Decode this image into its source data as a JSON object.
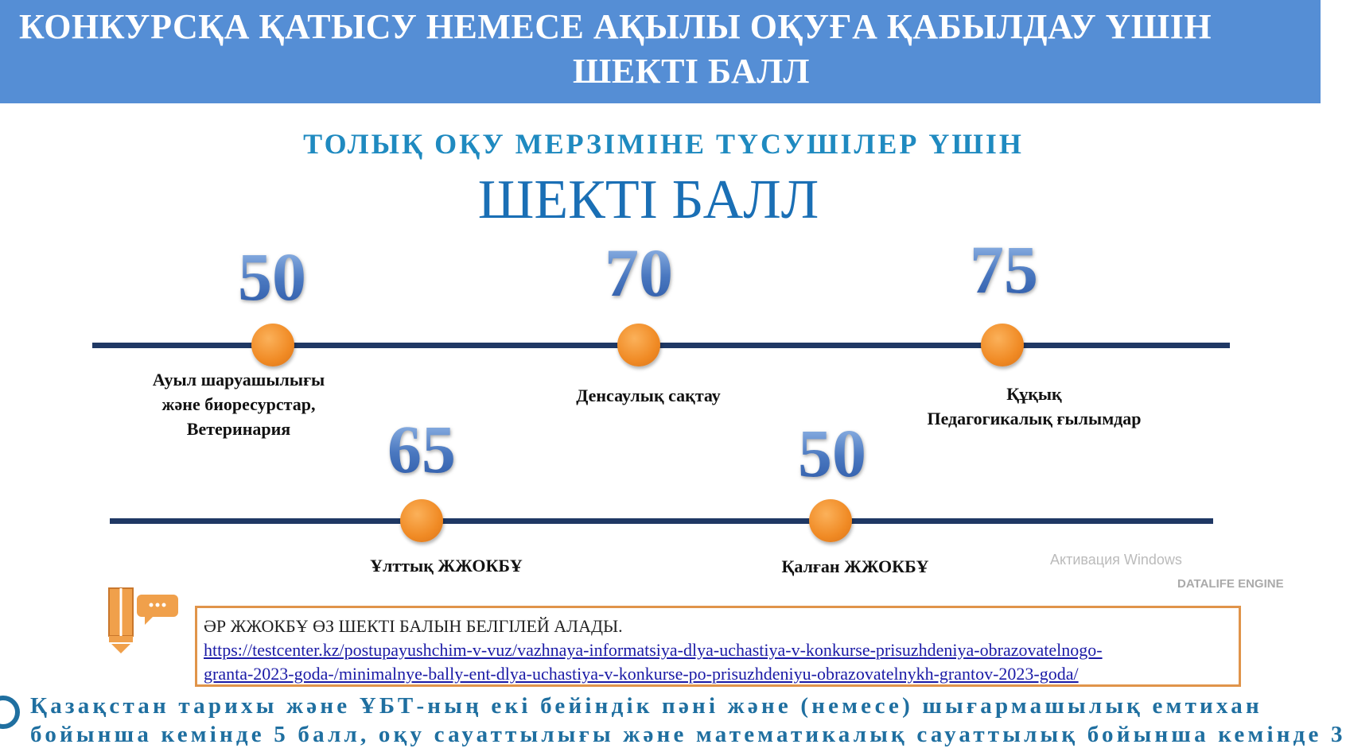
{
  "header": {
    "title_line1": "КОНКУРСҚА ҚАТЫСУ НЕМЕСЕ АҚЫЛЫ ОҚУҒА ҚАБЫЛДАУ ҮШІН",
    "title_line2": "ШЕКТІ БАЛЛ",
    "bg_color": "#558ed5"
  },
  "subtitle": "ТОЛЫҚ ОҚУ МЕРЗІМІНЕ ТҮСУШІЛЕР ҮШІН",
  "main_title": "ШЕКТІ БАЛЛ",
  "timeline1": [
    {
      "score": "50",
      "label_lines": [
        "Ауыл шаруашылығы",
        "және биоресурстар,",
        "Ветеринария"
      ]
    },
    {
      "score": "70",
      "label_lines": [
        "Денсаулық сақтау"
      ]
    },
    {
      "score": "75",
      "label_lines": [
        "Құқық",
        "Педагогикалық ғылымдар"
      ]
    }
  ],
  "timeline2": [
    {
      "score": "65",
      "label_lines": [
        "Ұлттық ЖЖОКБҰ"
      ]
    },
    {
      "score": "50",
      "label_lines": [
        "Қалған ЖЖОКБҰ"
      ]
    }
  ],
  "note": {
    "text": "ӘР ЖЖОКБҰ ӨЗ ШЕКТІ БАЛЫН БЕЛГІЛЕЙ АЛАДЫ.",
    "link_line1": "https://testcenter.kz/postupayushchim-v-vuz/vazhnaya-informatsiya-dlya-uchastiya-v-konkurse-prisuzhdeniya-obrazovatelnogo-",
    "link_line2": "granta-2023-goda-/minimalnye-bally-ent-dlya-uchastiya-v-konkurse-po-prisuzhdeniyu-obrazovatelnykh-grantov-2023-goda/",
    "icon": "pencil-chat-icon"
  },
  "bottom": {
    "line1": "Қазақстан тарихы және ҰБТ-ның екі бейіндік пәні және (немесе) шығармашылық емтихан",
    "line2": "бойынша кемінде 5 балл, оқу сауаттылығы және математикалық сауаттылық бойынша кемінде 3"
  },
  "watermarks": {
    "windows": "Активация Windows",
    "dle": "DATALIFE ENGINE"
  },
  "colors": {
    "line": "#1f3864",
    "dot": "#f08a24",
    "accent": "#1a6fb5",
    "border": "#e0944a"
  }
}
